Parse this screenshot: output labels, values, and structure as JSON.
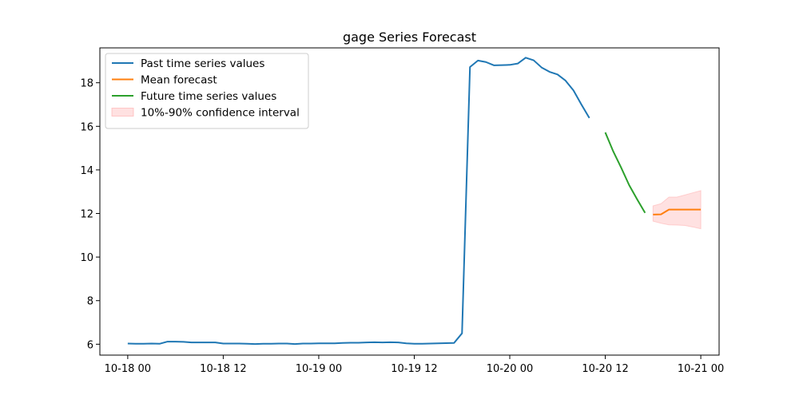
{
  "chart_data": {
    "type": "line",
    "title": "gage Series Forecast",
    "xlabel": "",
    "ylabel": "",
    "x_unit": "hours since 10-18 00",
    "xlim": [
      -3.5,
      74.3
    ],
    "ylim": [
      5.5,
      19.6
    ],
    "x_ticks": [
      {
        "value": 0,
        "label": "10-18 00"
      },
      {
        "value": 12,
        "label": "10-18 12"
      },
      {
        "value": 24,
        "label": "10-19 00"
      },
      {
        "value": 36,
        "label": "10-19 12"
      },
      {
        "value": 48,
        "label": "10-20 00"
      },
      {
        "value": 60,
        "label": "10-20 12"
      },
      {
        "value": 72,
        "label": "10-21 00"
      }
    ],
    "y_ticks": [
      {
        "value": 6,
        "label": "6"
      },
      {
        "value": 8,
        "label": "8"
      },
      {
        "value": 10,
        "label": "10"
      },
      {
        "value": 12,
        "label": "12"
      },
      {
        "value": 14,
        "label": "14"
      },
      {
        "value": 16,
        "label": "16"
      },
      {
        "value": 18,
        "label": "18"
      }
    ],
    "legend_position": "top-left",
    "series": [
      {
        "name": "Past time series values",
        "color": "#1f77b4",
        "x": [
          0,
          1,
          2,
          3,
          4,
          5,
          6,
          7,
          8,
          9,
          10,
          11,
          12,
          13,
          14,
          15,
          16,
          17,
          18,
          19,
          20,
          21,
          22,
          23,
          24,
          25,
          26,
          27,
          28,
          29,
          30,
          31,
          32,
          33,
          34,
          35,
          36,
          37,
          38,
          39,
          40,
          41,
          42,
          43,
          44,
          45,
          46,
          47,
          48,
          49,
          50,
          51,
          52,
          53,
          54,
          55,
          56,
          57,
          58,
          59
        ],
        "values": [
          6.03,
          6.02,
          6.02,
          6.03,
          6.02,
          6.12,
          6.12,
          6.11,
          6.08,
          6.08,
          6.08,
          6.08,
          6.03,
          6.03,
          6.03,
          6.02,
          6.01,
          6.02,
          6.02,
          6.03,
          6.03,
          6.01,
          6.03,
          6.03,
          6.04,
          6.04,
          6.04,
          6.06,
          6.07,
          6.07,
          6.08,
          6.09,
          6.08,
          6.09,
          6.08,
          6.04,
          6.02,
          6.02,
          6.03,
          6.04,
          6.05,
          6.06,
          6.5,
          18.72,
          19.02,
          18.95,
          18.8,
          18.81,
          18.82,
          18.88,
          19.15,
          19.03,
          18.7,
          18.5,
          18.38,
          18.1,
          17.65,
          17.0,
          16.38,
          null
        ]
      },
      {
        "name": "Future time series values",
        "color": "#2ca02c",
        "x": [
          60,
          61,
          62,
          63,
          64,
          65
        ],
        "values": [
          15.72,
          14.85,
          14.1,
          13.3,
          12.65,
          12.03
        ]
      },
      {
        "name": "Mean forecast",
        "color": "#ff7f0e",
        "x": [
          66,
          67,
          68,
          69,
          70,
          71,
          72
        ],
        "values": [
          11.95,
          11.96,
          12.18,
          12.18,
          12.18,
          12.18,
          12.18
        ]
      }
    ],
    "confidence_interval": {
      "name": "10%-90% confidence interval",
      "color": "#ffaaaa",
      "x": [
        66,
        67,
        68,
        69,
        70,
        71,
        72
      ],
      "lower": [
        11.65,
        11.55,
        11.48,
        11.47,
        11.45,
        11.38,
        11.3
      ],
      "upper": [
        12.35,
        12.45,
        12.75,
        12.75,
        12.85,
        12.95,
        13.05
      ]
    }
  }
}
